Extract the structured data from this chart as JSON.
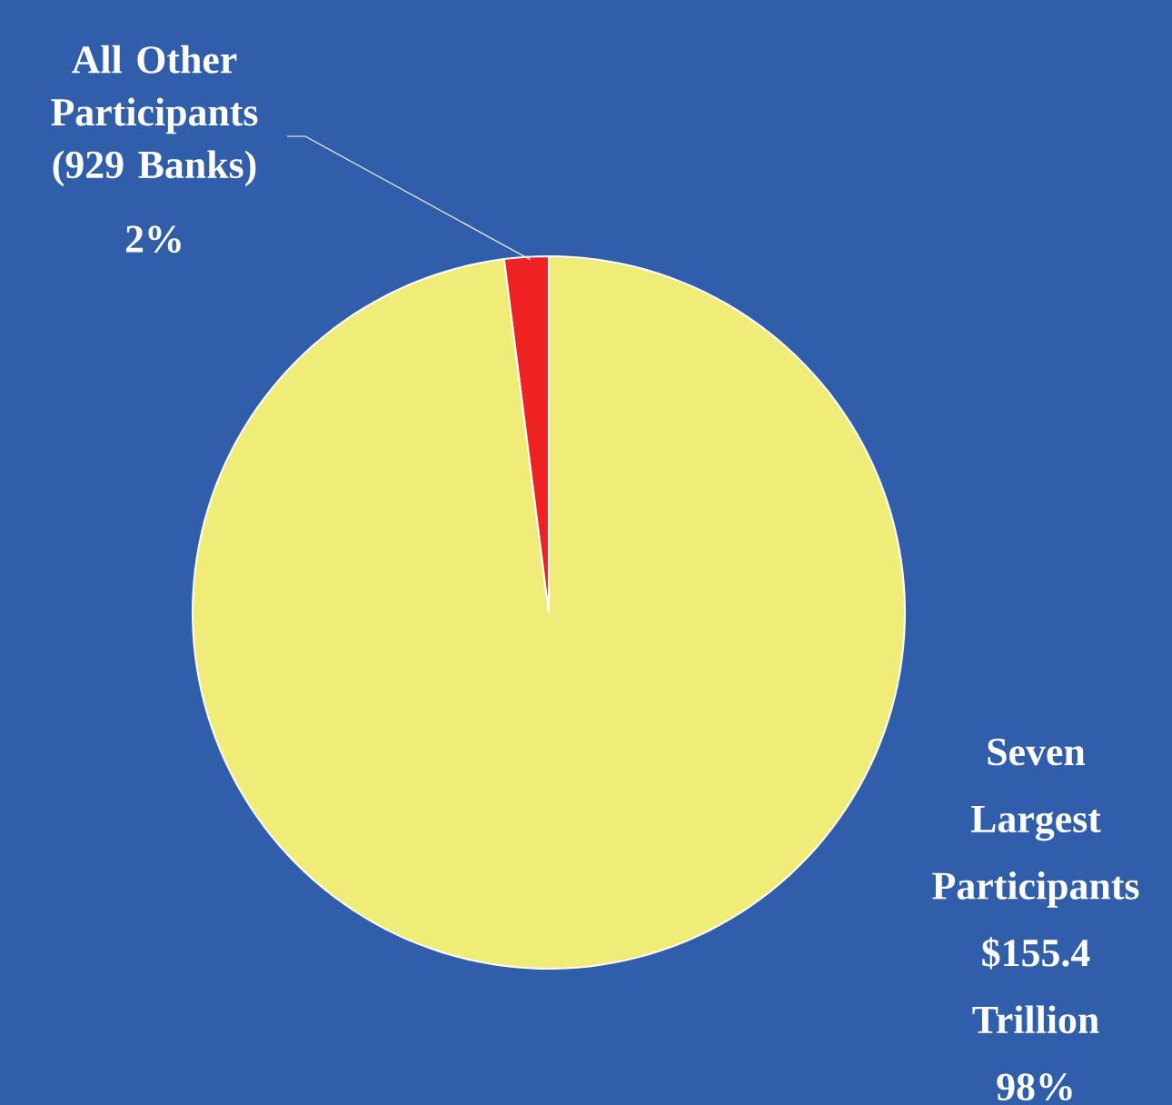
{
  "chart_data": {
    "type": "pie",
    "categories": [
      "Seven Largest Participants $155.4 Trillion",
      "All Other Participants (929 Banks)"
    ],
    "values": [
      98,
      2
    ],
    "colors": [
      "#f0ec78",
      "#ee2222"
    ],
    "value_labels": [
      "98%",
      "2%"
    ]
  }
}
